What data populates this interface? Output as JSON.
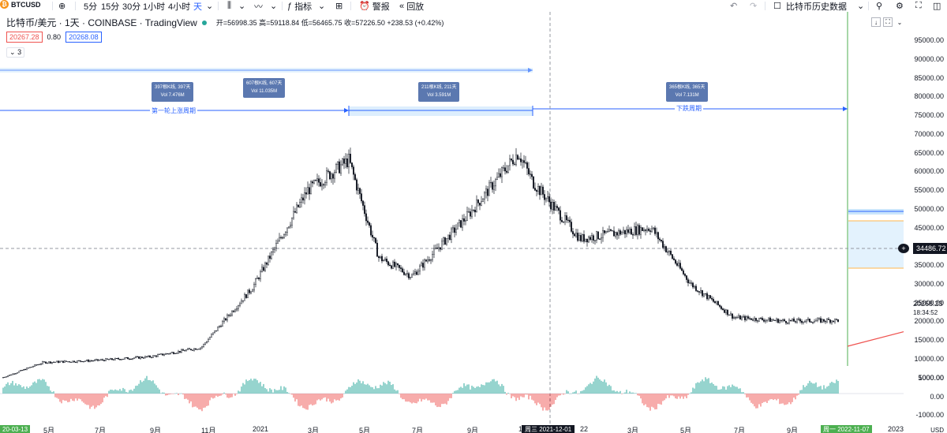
{
  "toolbar": {
    "symbol": "BTCUSD",
    "intervals": [
      "5分",
      "15分",
      "30分",
      "1小时",
      "4小时",
      "天"
    ],
    "indicators_label": "指标",
    "alert_label": "警报",
    "replay_label": "回放",
    "history_label": "比特币历史数据"
  },
  "legend": {
    "title": "比特币/美元 · 1天 · COINBASE · TradingView",
    "ohlc": "开=56998.35 高=59118.84 低=56465.75 收=57226.50 +238.53 (+0.42%)",
    "ind_val1": "20267.28",
    "ind_val2": "0.80",
    "ind_val3": "20268.08",
    "collapse": "3"
  },
  "annotations": {
    "c1_line1": "397根K线, 397天",
    "c1_line2": "Vol 7.476M",
    "c2_line1": "607根K线, 607天",
    "c2_line2": "Vol 11.035M",
    "c3_line1": "211根K线, 211天",
    "c3_line2": "Vol 3.591M",
    "c4_line1": "365根K线, 365天",
    "c4_line2": "Vol 7.131M",
    "bull_label": "第一轮上涨周期",
    "bear_label": "下跌周期"
  },
  "price_axis": {
    "labels": [
      "95000.00",
      "90000.00",
      "85000.00",
      "80000.00",
      "75000.00",
      "70000.00",
      "65000.00",
      "60000.00",
      "55000.00",
      "50000.00",
      "45000.00",
      "40000.00",
      "35000.00",
      "30000.00",
      "25000.00",
      "20000.00",
      "15000.00",
      "10000.00",
      "5000.00"
    ],
    "crosshair_price": "34486.72",
    "last_price": "20268.23",
    "countdown": "18:34:52",
    "osc_labels": [
      "1000.00",
      "0.00",
      "-1000.00"
    ],
    "currency": "USD"
  },
  "time_axis": {
    "labels": [
      "5月",
      "7月",
      "9月",
      "11月",
      "2021",
      "3月",
      "5月",
      "7月",
      "9月",
      "1",
      "22",
      "3月",
      "5月",
      "7月",
      "9月",
      "2023"
    ],
    "start_tag": "20-03-13",
    "crosshair_date": "周三 2021-12-01",
    "end_tag": "周一 2022-11-07"
  },
  "colors": {
    "up": "#26a69a",
    "down": "#ef5350",
    "accent": "#2962ff",
    "callout": "#5b78b0"
  },
  "chart_data": {
    "type": "candlestick",
    "x": [
      "2020-03-13",
      "2020-05",
      "2020-07",
      "2020-09",
      "2020-11",
      "2021-01",
      "2021-03",
      "2021-04",
      "2021-05",
      "2021-07",
      "2021-09",
      "2021-11",
      "2021-12-01",
      "2022-01",
      "2022-03",
      "2022-05",
      "2022-07",
      "2022-09",
      "2022-11-07"
    ],
    "close": [
      5000,
      9000,
      9500,
      10500,
      13000,
      29000,
      55000,
      63000,
      37000,
      32000,
      48000,
      65000,
      57226.5,
      42000,
      45000,
      30000,
      21000,
      20000,
      20268.23
    ],
    "ylim": [
      0,
      95000
    ]
  }
}
